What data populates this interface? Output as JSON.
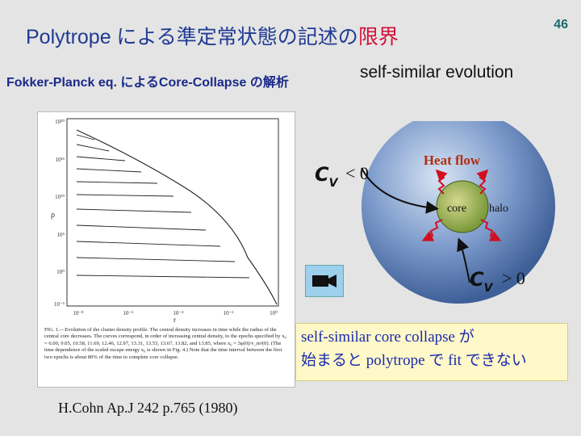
{
  "slide": {
    "title_prefix": "Polytrope による準定常状態の記述の",
    "title_highlight": "限界",
    "page_number": "46",
    "subtitle": "Fokker-Planck eq. によるCore-Collapse の解析",
    "self_similar_label": "self-similar evolution"
  },
  "figure": {
    "y_ticks": [
      "10²⁰",
      "10¹⁵",
      "10¹⁰",
      "10⁵",
      "10⁰",
      "10⁻⁵"
    ],
    "x_ticks": [
      "10⁻⁸",
      "10⁻⁶",
      "10⁻⁴",
      "10⁻²",
      "10⁰"
    ],
    "y_axis_label": "ρ",
    "x_axis_label": "r",
    "caption": "FIG. 1.—Evolution of the cluster density profile. The central density increases in time while the radius of the central core decreases. The curves correspond, in order of increasing central density, to the epochs specified by x₀ = 6.00, 9.05, 10.58, 11.69, 12.46, 12.97, 13.31, 13.53, 13.67, 13.82, and 13.85, where x₀ = 3φ(0)/v_m²(0). (The time dependence of the scaled escape energy x₀ is shown in Fig. 4.) Note that the time interval between the first two epochs is about 80% of the time to complete core collapse."
  },
  "diagram": {
    "heat_flow": "Heat flow",
    "core": "core",
    "halo": "halo",
    "cv_symbol": "C",
    "cv_subscript": "V",
    "cv_negative": "< 0",
    "cv_positive": "> 0",
    "colors": {
      "sphere_outer": "#4a70a8",
      "core": "#6e9a3c",
      "heat_text": "#b03010",
      "wave": "#d01020"
    }
  },
  "camera": {
    "icon": "video-camera-icon"
  },
  "conclusion": {
    "line1": "self-similar core collapse が",
    "line2": "始まると polytrope で fit できない"
  },
  "citation": "H.Cohn Ap.J 242 p.765 (1980)"
}
